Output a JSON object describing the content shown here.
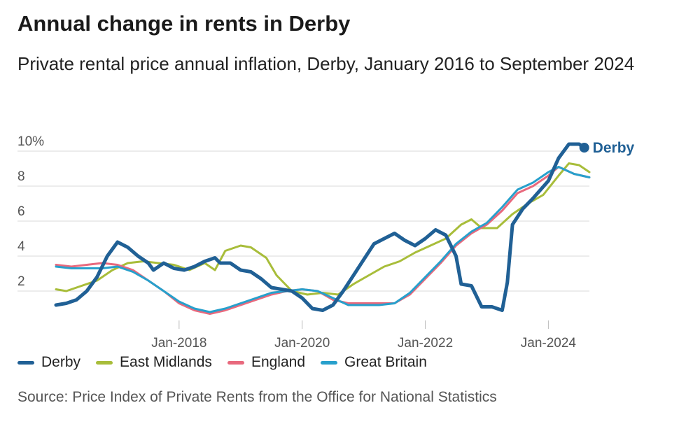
{
  "title": "Annual change in rents in Derby",
  "subtitle": "Private rental price annual inflation, Derby, January 2016 to September 2024",
  "source": "Source: Price Index of Private Rents from the Office for National Statistics",
  "direct_label": "Derby",
  "chart_data": {
    "type": "line",
    "x_unit": "month",
    "x_start": "2016-01",
    "x_end": "2024-09",
    "ylim": [
      0,
      10
    ],
    "y_ticks": [
      {
        "value": 10,
        "label": "10%"
      },
      {
        "value": 8,
        "label": "8"
      },
      {
        "value": 6,
        "label": "6"
      },
      {
        "value": 4,
        "label": "4"
      },
      {
        "value": 2,
        "label": "2"
      }
    ],
    "x_ticks": [
      {
        "date": "2018-01",
        "label": "Jan-2018"
      },
      {
        "date": "2020-01",
        "label": "Jan-2020"
      },
      {
        "date": "2022-01",
        "label": "Jan-2022"
      },
      {
        "date": "2024-01",
        "label": "Jan-2024"
      }
    ],
    "grid": true,
    "legend_position": "bottom",
    "series": [
      {
        "name": "Derby",
        "color": "#206095",
        "points": [
          [
            "2016-01",
            1.2
          ],
          [
            "2016-03",
            1.3
          ],
          [
            "2016-05",
            1.5
          ],
          [
            "2016-07",
            2.0
          ],
          [
            "2016-09",
            2.8
          ],
          [
            "2016-11",
            4.0
          ],
          [
            "2017-01",
            4.8
          ],
          [
            "2017-03",
            4.5
          ],
          [
            "2017-05",
            4.0
          ],
          [
            "2017-07",
            3.6
          ],
          [
            "2017-08",
            3.2
          ],
          [
            "2017-10",
            3.6
          ],
          [
            "2017-12",
            3.3
          ],
          [
            "2018-02",
            3.2
          ],
          [
            "2018-04",
            3.4
          ],
          [
            "2018-06",
            3.7
          ],
          [
            "2018-08",
            3.9
          ],
          [
            "2018-09",
            3.6
          ],
          [
            "2018-11",
            3.6
          ],
          [
            "2019-01",
            3.2
          ],
          [
            "2019-03",
            3.1
          ],
          [
            "2019-05",
            2.7
          ],
          [
            "2019-07",
            2.2
          ],
          [
            "2019-09",
            2.1
          ],
          [
            "2019-11",
            2.0
          ],
          [
            "2020-01",
            1.6
          ],
          [
            "2020-03",
            1.0
          ],
          [
            "2020-05",
            0.9
          ],
          [
            "2020-07",
            1.2
          ],
          [
            "2020-09",
            2.0
          ],
          [
            "2020-11",
            2.9
          ],
          [
            "2021-01",
            3.8
          ],
          [
            "2021-03",
            4.7
          ],
          [
            "2021-05",
            5.0
          ],
          [
            "2021-07",
            5.3
          ],
          [
            "2021-09",
            4.9
          ],
          [
            "2021-11",
            4.6
          ],
          [
            "2022-01",
            5.0
          ],
          [
            "2022-03",
            5.5
          ],
          [
            "2022-05",
            5.2
          ],
          [
            "2022-07",
            4.0
          ],
          [
            "2022-08",
            2.4
          ],
          [
            "2022-10",
            2.3
          ],
          [
            "2022-12",
            1.1
          ],
          [
            "2023-02",
            1.1
          ],
          [
            "2023-04",
            0.9
          ],
          [
            "2023-05",
            2.5
          ],
          [
            "2023-06",
            5.8
          ],
          [
            "2023-08",
            6.7
          ],
          [
            "2023-10",
            7.3
          ],
          [
            "2024-01",
            8.3
          ],
          [
            "2024-03",
            9.6
          ],
          [
            "2024-05",
            10.4
          ],
          [
            "2024-07",
            10.4
          ],
          [
            "2024-08",
            10.2
          ]
        ]
      },
      {
        "name": "East Midlands",
        "color": "#a8bd3a",
        "points": [
          [
            "2016-01",
            2.1
          ],
          [
            "2016-03",
            2.0
          ],
          [
            "2016-06",
            2.3
          ],
          [
            "2016-09",
            2.6
          ],
          [
            "2016-12",
            3.2
          ],
          [
            "2017-03",
            3.6
          ],
          [
            "2017-06",
            3.7
          ],
          [
            "2017-09",
            3.6
          ],
          [
            "2017-12",
            3.5
          ],
          [
            "2018-03",
            3.2
          ],
          [
            "2018-06",
            3.6
          ],
          [
            "2018-08",
            3.2
          ],
          [
            "2018-10",
            4.3
          ],
          [
            "2019-01",
            4.6
          ],
          [
            "2019-03",
            4.5
          ],
          [
            "2019-06",
            3.9
          ],
          [
            "2019-08",
            2.9
          ],
          [
            "2019-11",
            2.0
          ],
          [
            "2020-02",
            1.8
          ],
          [
            "2020-05",
            1.9
          ],
          [
            "2020-08",
            1.8
          ],
          [
            "2020-11",
            2.4
          ],
          [
            "2021-02",
            2.9
          ],
          [
            "2021-05",
            3.4
          ],
          [
            "2021-08",
            3.7
          ],
          [
            "2021-11",
            4.2
          ],
          [
            "2022-02",
            4.6
          ],
          [
            "2022-05",
            5.0
          ],
          [
            "2022-08",
            5.8
          ],
          [
            "2022-10",
            6.1
          ],
          [
            "2022-12",
            5.6
          ],
          [
            "2023-03",
            5.6
          ],
          [
            "2023-06",
            6.4
          ],
          [
            "2023-09",
            7.0
          ],
          [
            "2023-12",
            7.5
          ],
          [
            "2024-03",
            8.6
          ],
          [
            "2024-05",
            9.3
          ],
          [
            "2024-07",
            9.2
          ],
          [
            "2024-09",
            8.8
          ]
        ]
      },
      {
        "name": "England",
        "color": "#e8697d",
        "points": [
          [
            "2016-01",
            3.5
          ],
          [
            "2016-04",
            3.4
          ],
          [
            "2016-07",
            3.5
          ],
          [
            "2016-10",
            3.6
          ],
          [
            "2017-01",
            3.5
          ],
          [
            "2017-04",
            3.2
          ],
          [
            "2017-07",
            2.6
          ],
          [
            "2017-10",
            2.0
          ],
          [
            "2018-01",
            1.3
          ],
          [
            "2018-04",
            0.9
          ],
          [
            "2018-07",
            0.7
          ],
          [
            "2018-10",
            0.9
          ],
          [
            "2019-01",
            1.2
          ],
          [
            "2019-04",
            1.5
          ],
          [
            "2019-07",
            1.8
          ],
          [
            "2019-10",
            2.0
          ],
          [
            "2020-01",
            2.1
          ],
          [
            "2020-04",
            2.0
          ],
          [
            "2020-07",
            1.5
          ],
          [
            "2020-10",
            1.3
          ],
          [
            "2021-01",
            1.3
          ],
          [
            "2021-04",
            1.3
          ],
          [
            "2021-07",
            1.3
          ],
          [
            "2021-10",
            1.8
          ],
          [
            "2022-01",
            2.7
          ],
          [
            "2022-04",
            3.6
          ],
          [
            "2022-07",
            4.6
          ],
          [
            "2022-10",
            5.3
          ],
          [
            "2023-01",
            5.8
          ],
          [
            "2023-04",
            6.6
          ],
          [
            "2023-07",
            7.6
          ],
          [
            "2023-10",
            8.0
          ],
          [
            "2024-01",
            8.6
          ],
          [
            "2024-03",
            9.1
          ],
          [
            "2024-06",
            8.7
          ],
          [
            "2024-09",
            8.5
          ]
        ]
      },
      {
        "name": "Great Britain",
        "color": "#27a0cc",
        "points": [
          [
            "2016-01",
            3.4
          ],
          [
            "2016-04",
            3.3
          ],
          [
            "2016-07",
            3.3
          ],
          [
            "2016-10",
            3.3
          ],
          [
            "2017-01",
            3.4
          ],
          [
            "2017-04",
            3.1
          ],
          [
            "2017-07",
            2.6
          ],
          [
            "2017-10",
            2.0
          ],
          [
            "2018-01",
            1.4
          ],
          [
            "2018-04",
            1.0
          ],
          [
            "2018-07",
            0.8
          ],
          [
            "2018-10",
            1.0
          ],
          [
            "2019-01",
            1.3
          ],
          [
            "2019-04",
            1.6
          ],
          [
            "2019-07",
            1.9
          ],
          [
            "2019-10",
            2.0
          ],
          [
            "2020-01",
            2.1
          ],
          [
            "2020-04",
            2.0
          ],
          [
            "2020-07",
            1.6
          ],
          [
            "2020-10",
            1.2
          ],
          [
            "2021-01",
            1.2
          ],
          [
            "2021-04",
            1.2
          ],
          [
            "2021-07",
            1.3
          ],
          [
            "2021-10",
            1.9
          ],
          [
            "2022-01",
            2.8
          ],
          [
            "2022-04",
            3.7
          ],
          [
            "2022-07",
            4.7
          ],
          [
            "2022-10",
            5.4
          ],
          [
            "2023-01",
            5.9
          ],
          [
            "2023-04",
            6.8
          ],
          [
            "2023-07",
            7.8
          ],
          [
            "2023-10",
            8.2
          ],
          [
            "2024-01",
            8.8
          ],
          [
            "2024-03",
            9.1
          ],
          [
            "2024-06",
            8.7
          ],
          [
            "2024-09",
            8.5
          ]
        ]
      }
    ]
  }
}
